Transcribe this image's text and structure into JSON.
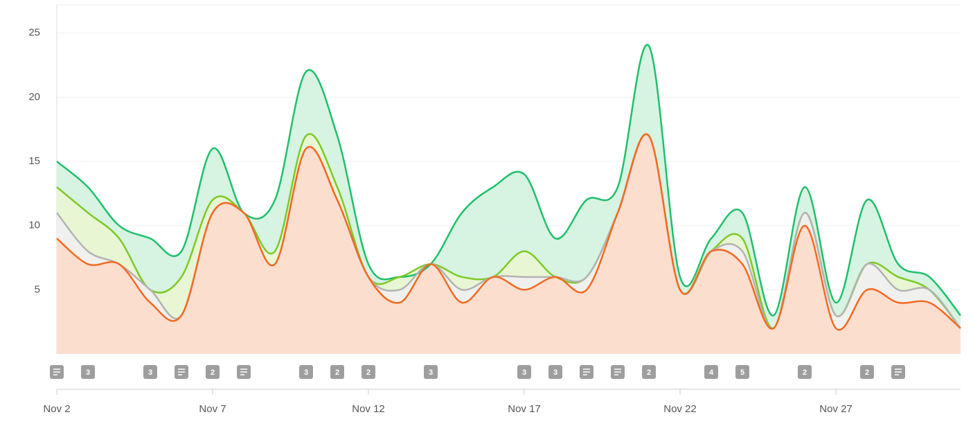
{
  "chart_data": {
    "type": "area",
    "categories": [
      "Nov 2",
      null,
      null,
      null,
      null,
      "Nov 7",
      null,
      null,
      null,
      null,
      "Nov 12",
      null,
      null,
      null,
      null,
      "Nov 17",
      null,
      null,
      null,
      null,
      "Nov 22",
      null,
      null,
      null,
      null,
      "Nov 27",
      null,
      null,
      null,
      null
    ],
    "series": [
      {
        "color": "#1fbf6a",
        "fill": "#d3f2df",
        "values": [
          15,
          13,
          10,
          9,
          8,
          16,
          11,
          12,
          22,
          17,
          7,
          6,
          7,
          11,
          13,
          14,
          9,
          12,
          13,
          24,
          6,
          9,
          11,
          3,
          13,
          4,
          12,
          7,
          6,
          3
        ]
      },
      {
        "color": "#7cc925",
        "fill": "#eaf6d3",
        "values": [
          13,
          11,
          9,
          5,
          6,
          12,
          11,
          8,
          17,
          13,
          6,
          6,
          7,
          6,
          6,
          8,
          6,
          6,
          11,
          17,
          5,
          8,
          9,
          2,
          11,
          3,
          7,
          6,
          5,
          2
        ]
      },
      {
        "color": "#b3b3b3",
        "fill": "#f1f1f1",
        "values": [
          11,
          8,
          7,
          5,
          3,
          11,
          11,
          7,
          16,
          12,
          6,
          5,
          7,
          5,
          6,
          6,
          6,
          6,
          11,
          17,
          5,
          8,
          8,
          2,
          11,
          3,
          7,
          5,
          5,
          2
        ]
      },
      {
        "color": "#f26a22",
        "fill": "#fddccb",
        "values": [
          9,
          7,
          7,
          4,
          3,
          11,
          11,
          7,
          16,
          12,
          6,
          4,
          7,
          4,
          6,
          5,
          6,
          5,
          11,
          17,
          5,
          8,
          7,
          2,
          10,
          2,
          5,
          4,
          4,
          2
        ]
      }
    ],
    "ylim": [
      0,
      27.2
    ],
    "yticks": [
      5,
      10,
      15,
      20,
      25
    ],
    "grid": true,
    "annotations": [
      {
        "index": 0,
        "label": null
      },
      {
        "index": 1,
        "label": "3"
      },
      {
        "index": 3,
        "label": "3"
      },
      {
        "index": 4,
        "label": null
      },
      {
        "index": 5,
        "label": "2"
      },
      {
        "index": 6,
        "label": null
      },
      {
        "index": 8,
        "label": "3"
      },
      {
        "index": 9,
        "label": "2"
      },
      {
        "index": 10,
        "label": "2"
      },
      {
        "index": 12,
        "label": "3"
      },
      {
        "index": 15,
        "label": "3"
      },
      {
        "index": 16,
        "label": "3"
      },
      {
        "index": 17,
        "label": null
      },
      {
        "index": 18,
        "label": null
      },
      {
        "index": 19,
        "label": "2"
      },
      {
        "index": 21,
        "label": "4"
      },
      {
        "index": 22,
        "label": "5"
      },
      {
        "index": 24,
        "label": "2"
      },
      {
        "index": 26,
        "label": "2"
      },
      {
        "index": 27,
        "label": null
      }
    ]
  }
}
